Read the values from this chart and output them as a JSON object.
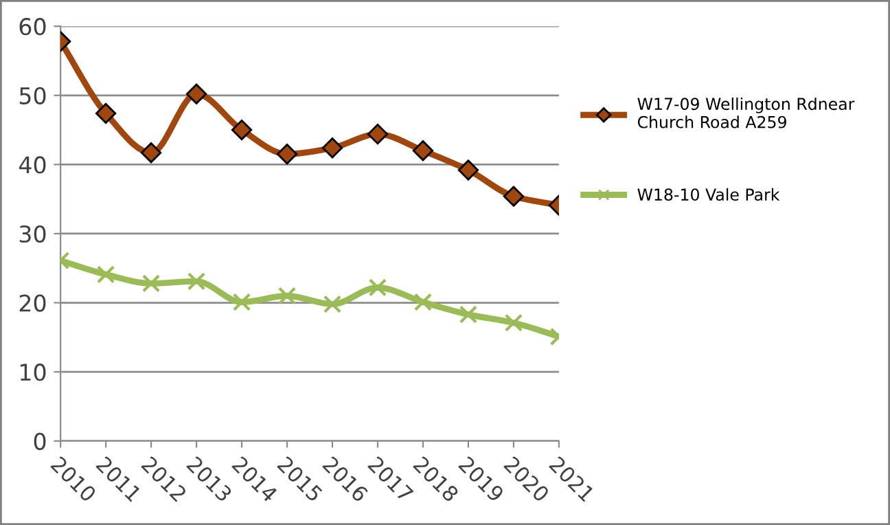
{
  "chart_data": {
    "type": "line",
    "categories": [
      "2010",
      "2011",
      "2012",
      "2013",
      "2014",
      "2015",
      "2016",
      "2017",
      "2018",
      "2019",
      "2020",
      "2021"
    ],
    "series": [
      {
        "name": "W17-09 Wellington Rdnear Church Road A259",
        "color": "#a0460f",
        "marker": "diamond",
        "values": [
          57.8,
          47.4,
          41.7,
          50.2,
          45.0,
          41.5,
          42.4,
          44.4,
          42.0,
          39.2,
          35.4,
          34.1
        ]
      },
      {
        "name": "W18-10 Vale Park",
        "color": "#9bbb59",
        "marker": "cross",
        "values": [
          26.1,
          24.1,
          22.8,
          23.1,
          20.1,
          21.0,
          19.8,
          22.2,
          20.1,
          18.3,
          17.1,
          15.1
        ]
      }
    ],
    "ylim": [
      0,
      60
    ],
    "yticks": [
      0,
      10,
      20,
      30,
      40,
      50,
      60
    ],
    "grid": "y",
    "legend": "right",
    "line_style": "solid"
  }
}
